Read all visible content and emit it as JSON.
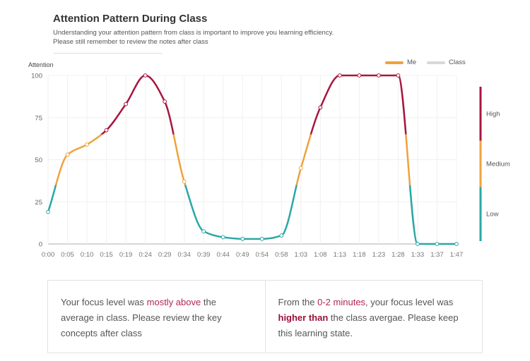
{
  "header": {
    "title": "Attention Pattern During Class",
    "subtitle": "Understanding your attention pattern from class is important to improve you learning efficiency. Please still remember to review the notes after class"
  },
  "legend": [
    {
      "name": "Me",
      "color": "#f0a23c"
    },
    {
      "name": "Class",
      "color": "#d8d8d8"
    }
  ],
  "levels": [
    {
      "label": "High",
      "color": "#a8163f",
      "from": 65,
      "to": 100
    },
    {
      "label": "Medium",
      "color": "#f0a23c",
      "from": 35,
      "to": 65
    },
    {
      "label": "Low",
      "color": "#2aa7a7",
      "from": 0,
      "to": 35
    }
  ],
  "chart_data": {
    "type": "line",
    "title": "Attention Pattern During Class",
    "xlabel": "",
    "ylabel": "Attention",
    "ylim": [
      0,
      100
    ],
    "yticks": [
      0,
      25,
      50,
      75,
      100
    ],
    "grid": true,
    "legend_position": "top-right",
    "x": [
      "0:00",
      "0:05",
      "0:10",
      "0:15",
      "0:19",
      "0:24",
      "0:29",
      "0:34",
      "0:39",
      "0:44",
      "0:49",
      "0:54",
      "0:58",
      "1:03",
      "1:08",
      "1:13",
      "1:18",
      "1:23",
      "1:28",
      "1:33",
      "1:37",
      "1:47"
    ],
    "series": [
      {
        "name": "Me",
        "values": [
          19,
          53,
          59,
          67.5,
          83,
          100,
          84.5,
          37,
          7.5,
          4,
          3,
          3,
          5,
          45,
          81,
          100,
          100,
          100,
          100,
          0,
          0,
          0
        ]
      },
      {
        "name": "Class",
        "values": []
      }
    ],
    "color_thresholds": {
      "low_max": 35,
      "medium_max": 65
    }
  },
  "cards": [
    {
      "parts": [
        {
          "text": "Your focus level was ",
          "style": "normal"
        },
        {
          "text": "mostly above",
          "style": "hl"
        },
        {
          "text": " the average in class. Please review the key concepts after class",
          "style": "normal"
        }
      ]
    },
    {
      "parts": [
        {
          "text": "From the ",
          "style": "normal"
        },
        {
          "text": "0-2 minutes",
          "style": "hl"
        },
        {
          "text": ", your focus level was ",
          "style": "normal"
        },
        {
          "text": "higher than",
          "style": "hl-bold"
        },
        {
          "text": " the class avergae. Please keep this learning state.",
          "style": "normal"
        }
      ]
    }
  ]
}
